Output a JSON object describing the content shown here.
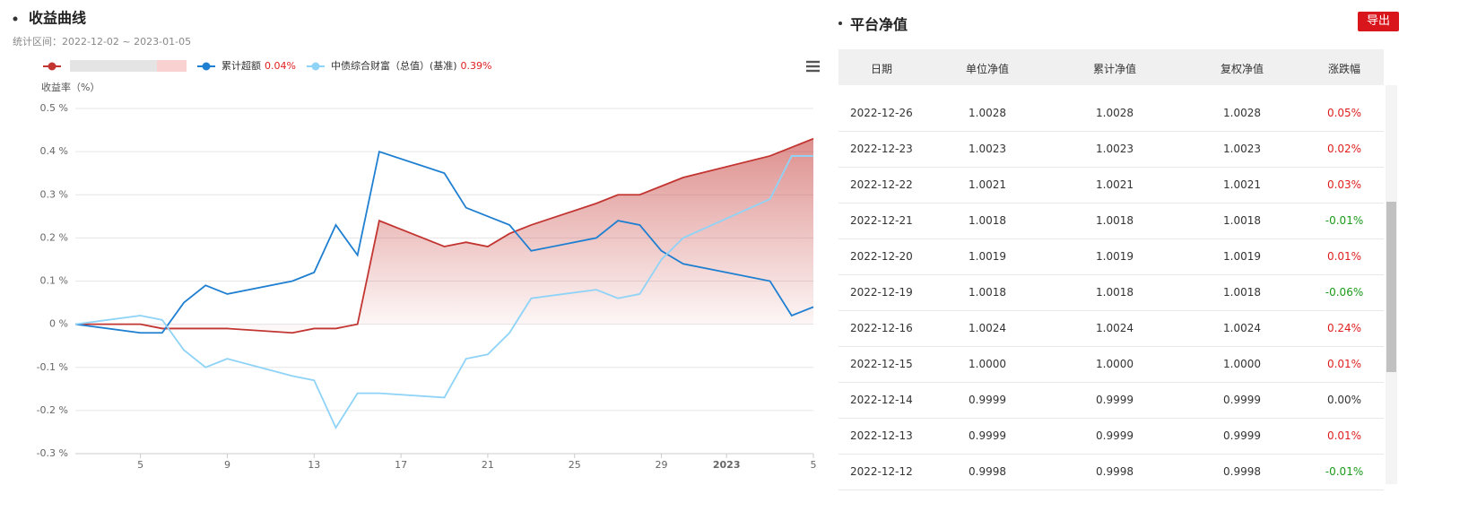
{
  "chart_data": {
    "type": "line",
    "title": "收益曲线",
    "subtitle": "统计区间：2022-12-02 ~ 2023-01-05",
    "y_label": "收益率（%）",
    "x": [
      "2022-12-02",
      "2022-12-05",
      "2022-12-06",
      "2022-12-07",
      "2022-12-08",
      "2022-12-09",
      "2022-12-12",
      "2022-12-13",
      "2022-12-14",
      "2022-12-15",
      "2022-12-16",
      "2022-12-19",
      "2022-12-20",
      "2022-12-21",
      "2022-12-22",
      "2022-12-23",
      "2022-12-26",
      "2022-12-27",
      "2022-12-28",
      "2022-12-29",
      "2022-12-30",
      "2023-01-03",
      "2023-01-04",
      "2023-01-05"
    ],
    "xlim": [
      "2022-12-02",
      "2023-01-05"
    ],
    "xticks": [
      {
        "value": "2022-12-05",
        "label": "5"
      },
      {
        "value": "2022-12-09",
        "label": "9"
      },
      {
        "value": "2022-12-13",
        "label": "13"
      },
      {
        "value": "2022-12-17",
        "label": "17"
      },
      {
        "value": "2022-12-21",
        "label": "21"
      },
      {
        "value": "2022-12-25",
        "label": "25"
      },
      {
        "value": "2022-12-29",
        "label": "29"
      },
      {
        "value": "2023-01-01",
        "label": "2023"
      },
      {
        "value": "2023-01-05",
        "label": "5"
      }
    ],
    "ylim": [
      -0.3,
      0.5
    ],
    "yticks": [
      {
        "value": -0.3,
        "label": "-0.3 %"
      },
      {
        "value": -0.2,
        "label": "-0.2 %"
      },
      {
        "value": -0.1,
        "label": "-0.1 %"
      },
      {
        "value": 0,
        "label": "0 %"
      },
      {
        "value": 0.1,
        "label": "0.1 %"
      },
      {
        "value": 0.2,
        "label": "0.2 %"
      },
      {
        "value": 0.3,
        "label": "0.3 %"
      },
      {
        "value": 0.4,
        "label": "0.4 %"
      },
      {
        "value": 0.5,
        "label": "0.5 %"
      }
    ],
    "grid": true,
    "series": [
      {
        "color": "#c23531",
        "area": true,
        "values": [
          0,
          0,
          -0.01,
          -0.01,
          -0.01,
          -0.01,
          -0.02,
          -0.01,
          -0.01,
          0,
          0.24,
          0.18,
          0.19,
          0.18,
          0.21,
          0.23,
          0.28,
          0.3,
          0.3,
          0.32,
          0.34,
          0.39,
          0.41,
          0.43
        ]
      },
      {
        "name": "累计超额",
        "legend_value": "0.04%",
        "color": "#1f7fd1",
        "values": [
          0,
          -0.02,
          -0.02,
          0.05,
          0.09,
          0.07,
          0.1,
          0.12,
          0.23,
          0.16,
          0.4,
          0.35,
          0.27,
          0.25,
          0.23,
          0.17,
          0.2,
          0.24,
          0.23,
          0.17,
          0.14,
          0.1,
          0.02,
          0.04
        ]
      },
      {
        "name": "中债综合财富（总值）(基准)",
        "legend_value": "0.39%",
        "color": "#8fd3f7",
        "values": [
          0,
          0.02,
          0.01,
          -0.06,
          -0.1,
          -0.08,
          -0.12,
          -0.13,
          -0.24,
          -0.16,
          -0.16,
          -0.17,
          -0.08,
          -0.07,
          -0.02,
          0.06,
          0.08,
          0.06,
          0.07,
          0.15,
          0.2,
          0.29,
          0.39,
          0.39
        ]
      }
    ]
  },
  "table": {
    "title": "平台净值",
    "export": "导出",
    "headers": [
      "日期",
      "单位净值",
      "累计净值",
      "复权净值",
      "涨跌幅"
    ],
    "rows": [
      [
        "2022-12-26",
        "1.0028",
        "1.0028",
        "1.0028",
        "0.05%"
      ],
      [
        "2022-12-23",
        "1.0023",
        "1.0023",
        "1.0023",
        "0.02%"
      ],
      [
        "2022-12-22",
        "1.0021",
        "1.0021",
        "1.0021",
        "0.03%"
      ],
      [
        "2022-12-21",
        "1.0018",
        "1.0018",
        "1.0018",
        "-0.01%"
      ],
      [
        "2022-12-20",
        "1.0019",
        "1.0019",
        "1.0019",
        "0.01%"
      ],
      [
        "2022-12-19",
        "1.0018",
        "1.0018",
        "1.0018",
        "-0.06%"
      ],
      [
        "2022-12-16",
        "1.0024",
        "1.0024",
        "1.0024",
        "0.24%"
      ],
      [
        "2022-12-15",
        "1.0000",
        "1.0000",
        "1.0000",
        "0.01%"
      ],
      [
        "2022-12-14",
        "0.9999",
        "0.9999",
        "0.9999",
        "0.00%"
      ],
      [
        "2022-12-13",
        "0.9999",
        "0.9999",
        "0.9999",
        "0.01%"
      ],
      [
        "2022-12-12",
        "0.9998",
        "0.9998",
        "0.9998",
        "-0.01%"
      ]
    ]
  }
}
